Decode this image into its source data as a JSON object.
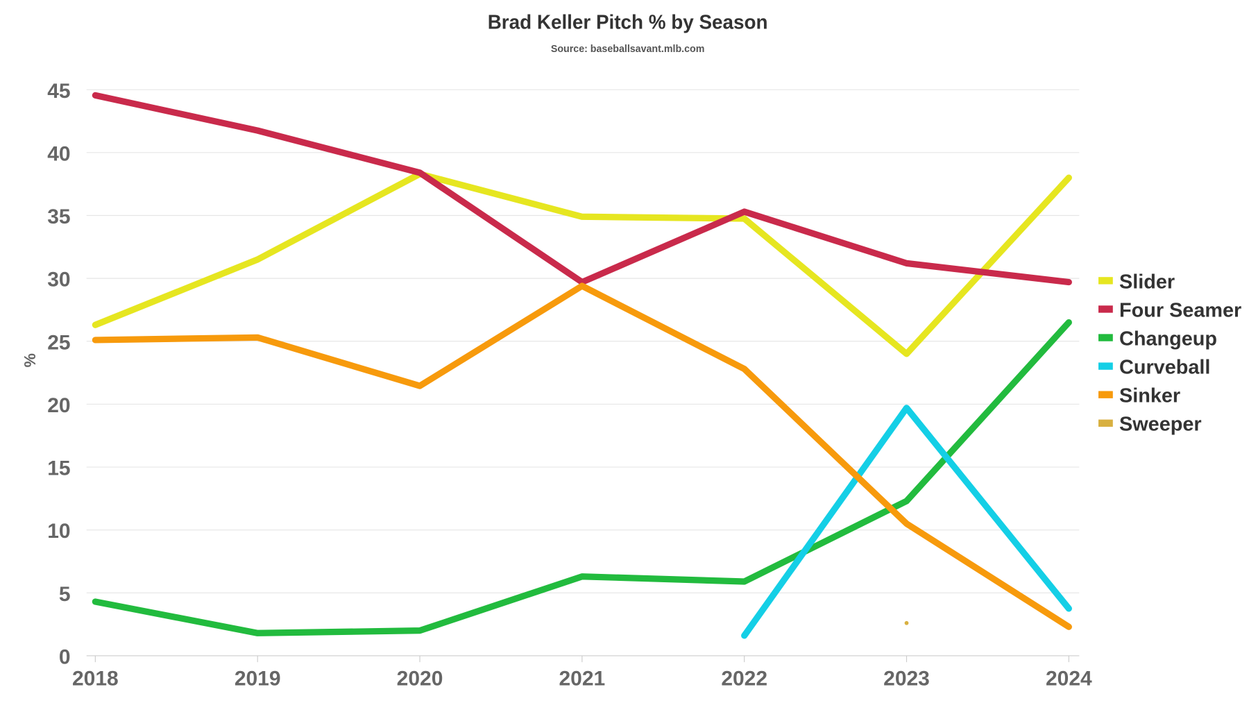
{
  "chart_data": {
    "type": "line",
    "title": "Brad Keller Pitch % by Season",
    "subtitle": "Source: baseballsavant.mlb.com",
    "xlabel": "",
    "ylabel": "%",
    "x": [
      "2018",
      "2019",
      "2020",
      "2021",
      "2022",
      "2023",
      "2024"
    ],
    "ylim": [
      0,
      45
    ],
    "yticks": [
      "0",
      "5",
      "10",
      "15",
      "20",
      "25",
      "30",
      "35",
      "40",
      "45"
    ],
    "grid": true,
    "legend_position": "right",
    "series": [
      {
        "name": "Slider",
        "color": "#e6e620",
        "values": [
          26.3,
          31.5,
          38.3,
          34.9,
          34.75,
          24.0,
          38.0
        ]
      },
      {
        "name": "Four Seamer",
        "color": "#c92a4b",
        "values": [
          44.55,
          41.75,
          38.4,
          29.7,
          35.3,
          31.2,
          29.7
        ]
      },
      {
        "name": "Changeup",
        "color": "#22bb3e",
        "values": [
          4.3,
          1.8,
          2.0,
          6.3,
          5.9,
          12.3,
          26.5
        ]
      },
      {
        "name": "Curveball",
        "color": "#14cfe6",
        "values": [
          null,
          null,
          null,
          null,
          1.6,
          19.7,
          3.75
        ]
      },
      {
        "name": "Sinker",
        "color": "#f79a0c",
        "values": [
          25.1,
          25.3,
          21.45,
          29.4,
          22.8,
          10.5,
          2.3
        ]
      },
      {
        "name": "Sweeper",
        "color": "#d8b040",
        "values": [
          null,
          null,
          null,
          null,
          null,
          2.6,
          null
        ]
      }
    ]
  }
}
